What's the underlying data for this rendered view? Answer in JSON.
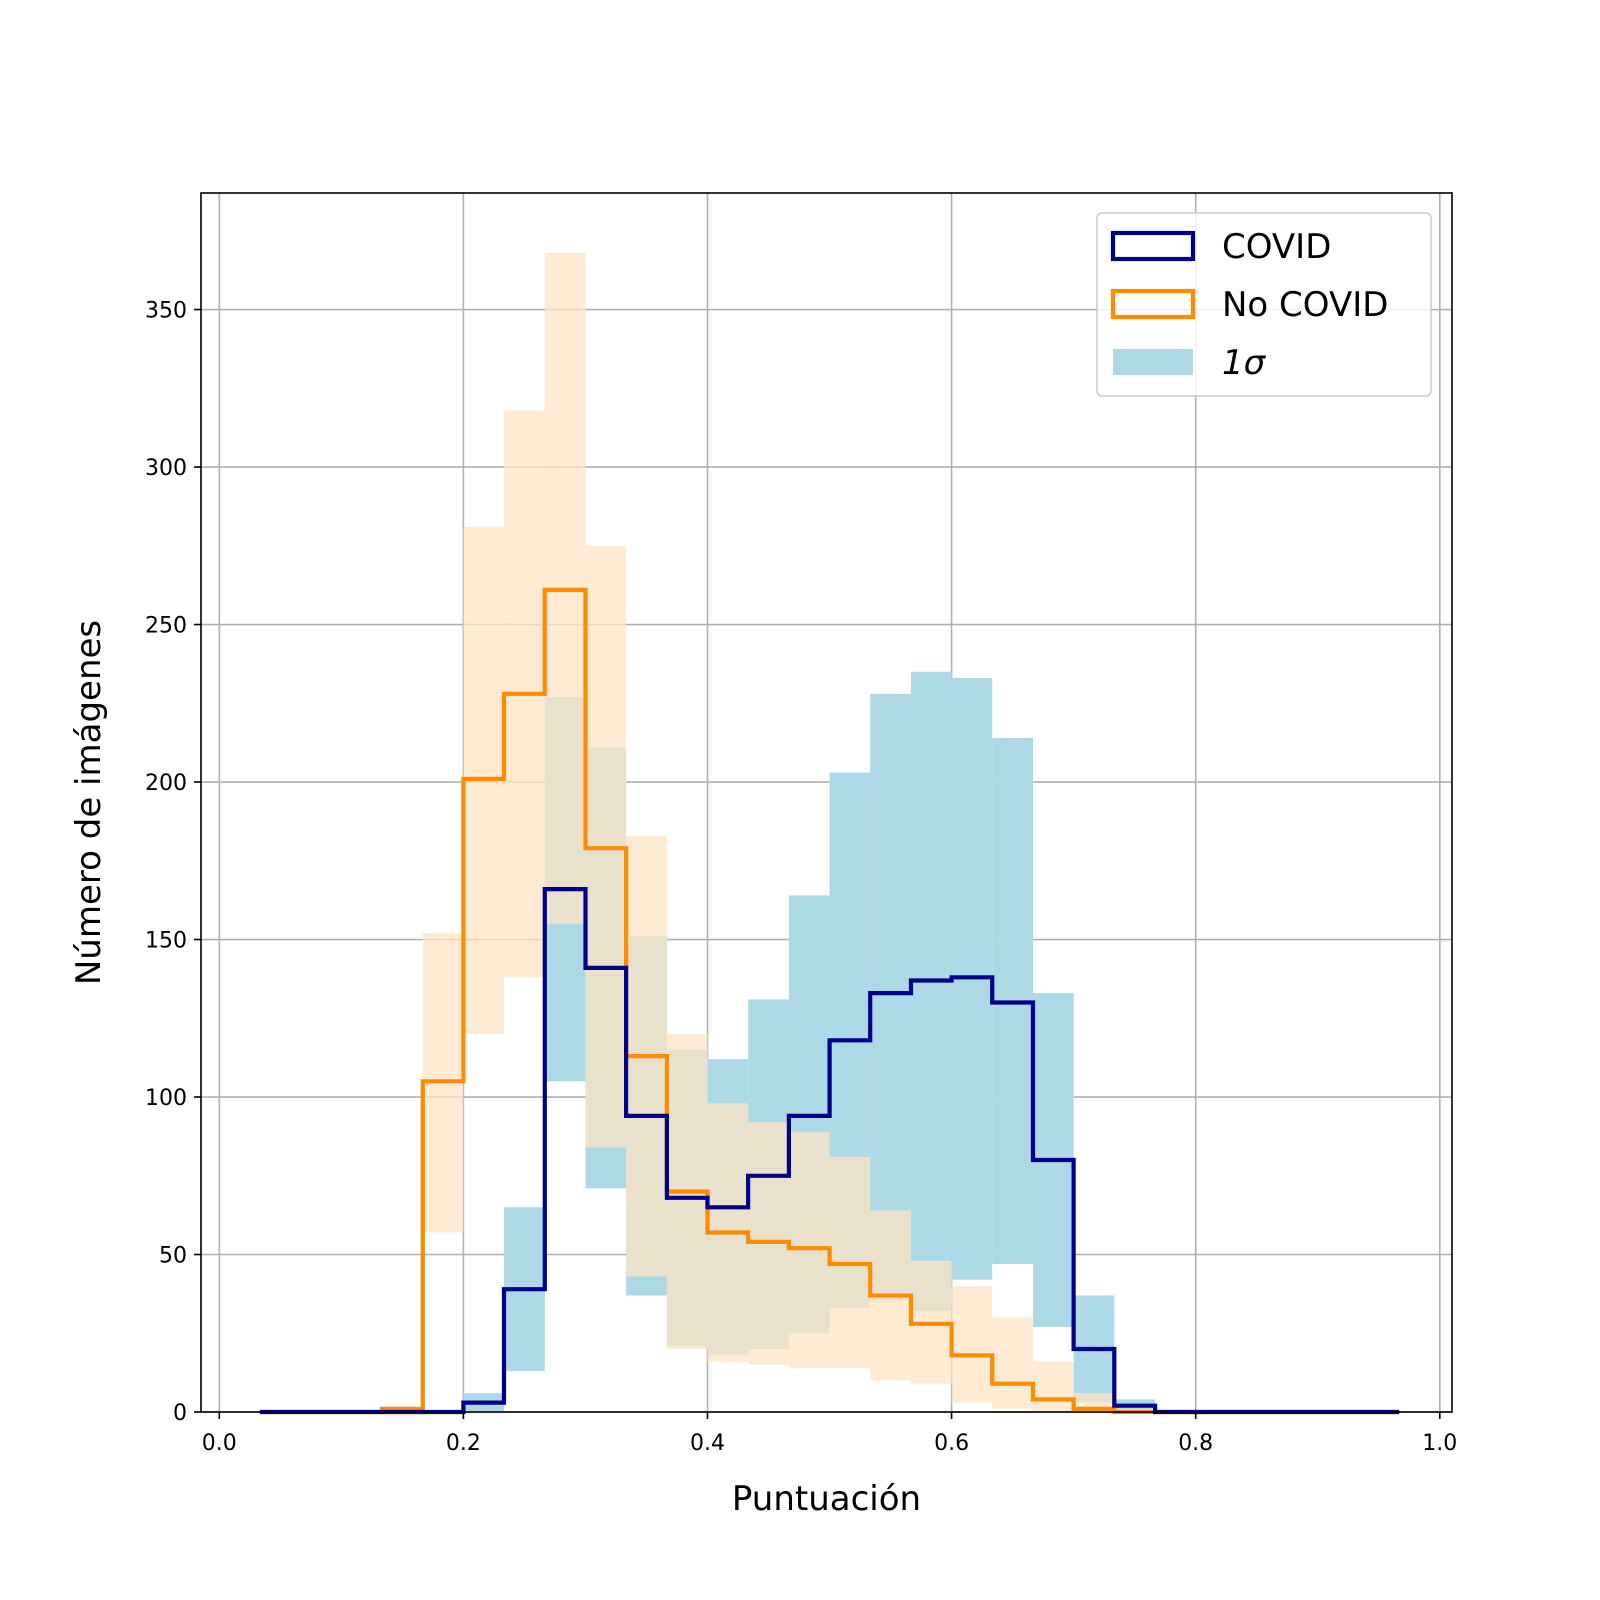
{
  "chart_data": {
    "type": "histogram",
    "xlabel": "Puntuación",
    "ylabel": "Número de imágenes",
    "xlim": [
      -0.015,
      1.01
    ],
    "ylim": [
      0,
      387
    ],
    "xticks": [
      0.0,
      0.2,
      0.4,
      0.6,
      0.8,
      1.0
    ],
    "xtick_labels": [
      "0.0",
      "0.2",
      "0.4",
      "0.6",
      "0.8",
      "1.0"
    ],
    "yticks": [
      0,
      50,
      100,
      150,
      200,
      250,
      300,
      350
    ],
    "ytick_labels": [
      "0",
      "50",
      "100",
      "150",
      "200",
      "250",
      "300",
      "350"
    ],
    "grid": true,
    "legend_position": "top-right",
    "bin_edges": [
      0.0333,
      0.0667,
      0.1,
      0.1333,
      0.1667,
      0.2,
      0.2333,
      0.2667,
      0.3,
      0.3333,
      0.3667,
      0.4,
      0.4333,
      0.4667,
      0.5,
      0.5333,
      0.5667,
      0.6,
      0.6333,
      0.6667,
      0.7,
      0.7333,
      0.7667,
      0.8,
      0.8333,
      0.8667,
      0.9,
      0.9333,
      0.9667
    ],
    "series": [
      {
        "name": "COVID",
        "color": "#00008b",
        "style": "step",
        "values": [
          0,
          0,
          0,
          0,
          0,
          3,
          39,
          166,
          141,
          94,
          68,
          65,
          75,
          94,
          118,
          133,
          137,
          138,
          130,
          80,
          20,
          2,
          0,
          0,
          0,
          0,
          0,
          0
        ],
        "band_low": [
          0,
          0,
          0,
          0,
          0,
          0,
          13,
          105,
          71,
          37,
          21,
          18,
          20,
          25,
          33,
          38,
          32,
          42,
          47,
          27,
          3,
          0,
          0,
          0,
          0,
          0,
          0,
          0
        ],
        "band_high": [
          0,
          0,
          0,
          0,
          0,
          6,
          65,
          227,
          211,
          151,
          115,
          112,
          131,
          164,
          203,
          228,
          235,
          233,
          214,
          133,
          37,
          4,
          0,
          0,
          0,
          0,
          0,
          0
        ]
      },
      {
        "name": "No COVID",
        "color": "#ff8c00",
        "style": "step",
        "values": [
          0,
          0,
          0,
          1,
          105,
          201,
          228,
          261,
          179,
          113,
          70,
          57,
          54,
          52,
          47,
          37,
          28,
          18,
          9,
          4,
          1,
          0,
          0,
          0,
          0,
          0,
          0,
          0
        ],
        "band_low": [
          0,
          0,
          0,
          0,
          57,
          120,
          138,
          155,
          84,
          43,
          20,
          16,
          15,
          14,
          14,
          10,
          9,
          3,
          1,
          0,
          0,
          0,
          0,
          0,
          0,
          0,
          0,
          0
        ],
        "band_high": [
          0,
          0,
          0,
          1,
          152,
          281,
          318,
          368,
          275,
          183,
          120,
          98,
          92,
          89,
          81,
          64,
          48,
          40,
          30,
          16,
          6,
          1,
          0,
          0,
          0,
          0,
          0,
          0
        ]
      }
    ],
    "legend": [
      {
        "label": "COVID",
        "kind": "outline",
        "color": "#00008b"
      },
      {
        "label": "No COVID",
        "kind": "outline",
        "color": "#ff8c00"
      },
      {
        "label": "1σ",
        "kind": "fill",
        "color": "#add8e6"
      }
    ],
    "colors": {
      "covid_band": "#add8e6",
      "nocovid_band": "#ffe4c4",
      "grid": "#b0b0b0",
      "frame": "#000000"
    }
  }
}
